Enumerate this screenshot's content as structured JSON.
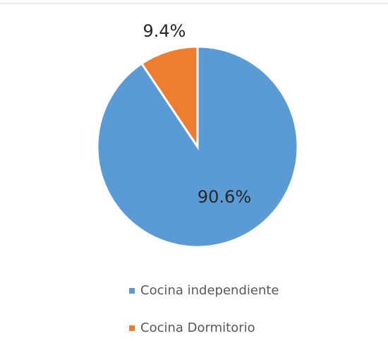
{
  "chart_data": {
    "type": "pie",
    "categories": [
      "Cocina independiente",
      "Cocina Dormitorio"
    ],
    "values": [
      90.6,
      9.4
    ],
    "value_labels": [
      "90.6%",
      "9.4%"
    ],
    "colors": [
      "#5b9bd5",
      "#ed7d31"
    ]
  }
}
